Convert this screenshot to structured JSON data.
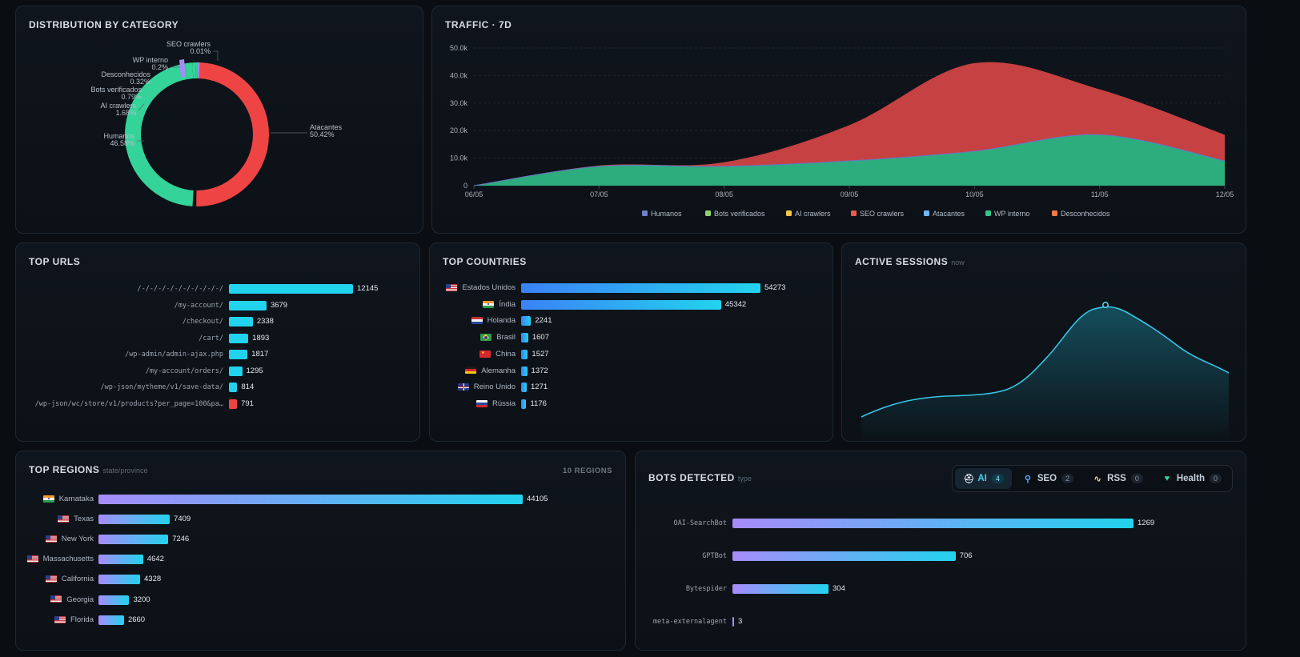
{
  "distribution": {
    "title": "DISTRIBUTION BY CATEGORY",
    "slices": [
      {
        "name": "Atacantes",
        "pct": "50.42%",
        "value": 50.42,
        "color": "#ef4444"
      },
      {
        "name": "Humanos",
        "pct": "46.58%",
        "value": 46.58,
        "color": "#34d399"
      },
      {
        "name": "AI crawlers",
        "pct": "1.68%",
        "value": 1.68,
        "color": "#34d399"
      },
      {
        "name": "Bots verificados",
        "pct": "0.79%",
        "value": 0.79,
        "color": "#34d399"
      },
      {
        "name": "Desconhecidos",
        "pct": "0.32%",
        "value": 0.32,
        "color": "#34d399"
      },
      {
        "name": "WP interno",
        "pct": "0.2%",
        "value": 0.2,
        "color": "#a78bfa"
      },
      {
        "name": "SEO crawlers",
        "pct": "0.01%",
        "value": 0.01,
        "color": "#a78bfa"
      }
    ]
  },
  "traffic": {
    "title": "TRAFFIC · 7D",
    "y_ticks": [
      "50.0k",
      "40.0k",
      "30.0k",
      "20.0k",
      "10.0k",
      "0"
    ],
    "x_ticks": [
      "06/05",
      "07/05",
      "08/05",
      "09/05",
      "10/05",
      "11/05",
      "12/05"
    ],
    "legend": [
      {
        "name": "Humanos",
        "color": "#6f7fcf"
      },
      {
        "name": "Bots verificados",
        "color": "#8fd16f"
      },
      {
        "name": "AI crawlers",
        "color": "#f5c542"
      },
      {
        "name": "SEO crawlers",
        "color": "#ef5a4a"
      },
      {
        "name": "Atacantes",
        "color": "#6fb7f5"
      },
      {
        "name": "WP interno",
        "color": "#34c58a"
      },
      {
        "name": "Desconhecidos",
        "color": "#f07a45"
      }
    ]
  },
  "chart_data": {
    "type": "area",
    "x": [
      "06/05",
      "07/05",
      "08/05",
      "09/05",
      "10/05",
      "11/05",
      "12/05"
    ],
    "ylim": [
      0,
      50000
    ],
    "series": [
      {
        "name": "WP interno",
        "values": [
          0,
          7000,
          7000,
          9000,
          12500,
          18500,
          9000
        ]
      },
      {
        "name": "Atacantes",
        "values": [
          0,
          300,
          1500,
          13000,
          32000,
          16500,
          9500
        ]
      }
    ]
  },
  "top_urls": {
    "title": "TOP URLS",
    "max": 12145,
    "rows": [
      {
        "label": "/-/-/-/-/-/-/-/-/-/-/",
        "value": 12145,
        "color": "#22d3ee"
      },
      {
        "label": "/my-account/",
        "value": 3679,
        "color": "#22d3ee"
      },
      {
        "label": "/checkout/",
        "value": 2338,
        "color": "#22d3ee"
      },
      {
        "label": "/cart/",
        "value": 1893,
        "color": "#22d3ee"
      },
      {
        "label": "/wp-admin/admin-ajax.php",
        "value": 1817,
        "color": "#22d3ee"
      },
      {
        "label": "/my-account/orders/",
        "value": 1295,
        "color": "#22d3ee"
      },
      {
        "label": "/wp-json/mytheme/v1/save-data/",
        "value": 814,
        "color": "#22d3ee"
      },
      {
        "label": "/wp-json/wc/store/v1/products?per_page=100&pa…",
        "value": 791,
        "color": "#ef4444"
      }
    ]
  },
  "top_countries": {
    "title": "TOP COUNTRIES",
    "max": 54273,
    "rows": [
      {
        "label": "Estados Unidos",
        "flag": "us",
        "value": 54273
      },
      {
        "label": "Índia",
        "flag": "in",
        "value": 45342
      },
      {
        "label": "Holanda",
        "flag": "nl",
        "value": 2241
      },
      {
        "label": "Brasil",
        "flag": "br",
        "value": 1607
      },
      {
        "label": "China",
        "flag": "cn",
        "value": 1527
      },
      {
        "label": "Alemanha",
        "flag": "de",
        "value": 1372
      },
      {
        "label": "Reino Unido",
        "flag": "gb",
        "value": 1271
      },
      {
        "label": "Rússia",
        "flag": "ru",
        "value": 1176
      }
    ]
  },
  "active_sessions": {
    "title": "ACTIVE SESSIONS",
    "sub": "now"
  },
  "top_regions": {
    "title": "TOP REGIONS",
    "sub": "state/province",
    "count": "10 REGIONS",
    "max": 44105,
    "rows": [
      {
        "label": "Karnataka",
        "flag": "in",
        "value": 44105
      },
      {
        "label": "Texas",
        "flag": "us",
        "value": 7409
      },
      {
        "label": "New York",
        "flag": "us",
        "value": 7246
      },
      {
        "label": "Massachusetts",
        "flag": "us",
        "value": 4642
      },
      {
        "label": "California",
        "flag": "us",
        "value": 4328
      },
      {
        "label": "Georgia",
        "flag": "us",
        "value": 3200
      },
      {
        "label": "Florida",
        "flag": "us",
        "value": 2660
      }
    ]
  },
  "bots": {
    "title": "BOTS DETECTED",
    "sub": "type",
    "tabs": [
      {
        "label": "AI",
        "count": "4",
        "icon": "robot-icon",
        "active": true
      },
      {
        "label": "SEO",
        "count": "2",
        "icon": "search-icon",
        "active": false
      },
      {
        "label": "RSS",
        "count": "0",
        "icon": "rss-icon",
        "active": false
      },
      {
        "label": "Health",
        "count": "0",
        "icon": "heart-icon",
        "active": false
      }
    ],
    "max": 1269,
    "rows": [
      {
        "label": "OAI-SearchBot",
        "value": 1269
      },
      {
        "label": "GPTBot",
        "value": 706
      },
      {
        "label": "Bytespider",
        "value": 304
      },
      {
        "label": "meta-externalagent",
        "value": 3
      }
    ]
  }
}
